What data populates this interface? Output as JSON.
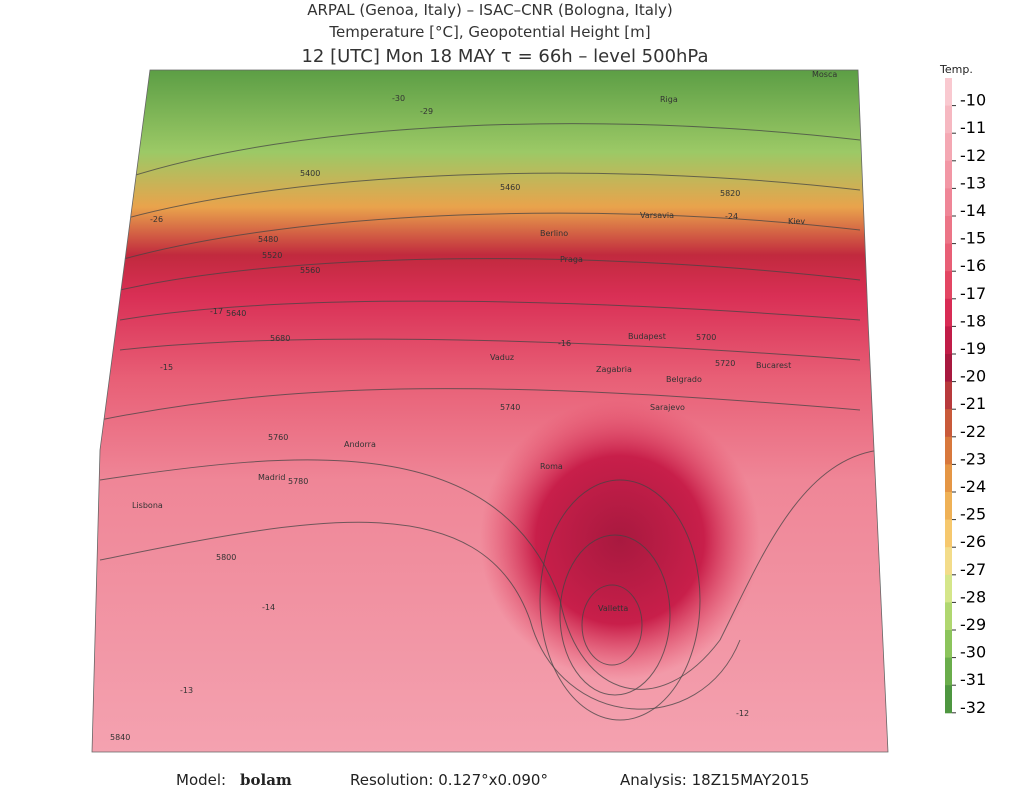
{
  "header": {
    "line1": "ARPAL (Genoa, Italy)  –  ISAC–CNR (Bologna, Italy)",
    "line2": "Temperature [°C], Geopotential Height [m]",
    "line3": "12 [UTC] Mon 18 MAY  τ = 66h  –  level 500hPa"
  },
  "colorbar": {
    "title": "Temp.",
    "levels": [
      -10,
      -11,
      -12,
      -13,
      -14,
      -15,
      -16,
      -17,
      -18,
      -19,
      -20,
      -21,
      -22,
      -23,
      -24,
      -25,
      -26,
      -27,
      -28,
      -29,
      -30,
      -31,
      -32
    ],
    "colors": [
      "#f9c9d0",
      "#f6b8c1",
      "#f4a8b3",
      "#f297a5",
      "#ef8697",
      "#ec7587",
      "#e85f76",
      "#e34663",
      "#d82c55",
      "#c11d48",
      "#a8193f",
      "#b83a3c",
      "#c95a3a",
      "#d8783c",
      "#e59645",
      "#efb156",
      "#f6c86e",
      "#f3dc8a",
      "#d5e68a",
      "#b0d770",
      "#8cc45c",
      "#6aad4b",
      "#4e9640"
    ]
  },
  "map": {
    "labels": [
      "Madrid",
      "Lisbona",
      "Andorra",
      "Roma",
      "Vaduz",
      "Zagabria",
      "Belgrado",
      "Sarajevo",
      "Budapest",
      "Bucarest",
      "Valletta",
      "Berlino",
      "Varsavia",
      "Praga",
      "Kiev",
      "Riga",
      "Mosca",
      "5400",
      "5460",
      "5480",
      "5520",
      "5560",
      "5640",
      "5680",
      "5700",
      "5720",
      "5740",
      "5760",
      "5780",
      "5800",
      "5820",
      "5840",
      "-13",
      "-14",
      "-15",
      "-16",
      "-17",
      "-24",
      "-26",
      "-29",
      "-30",
      "-12"
    ]
  },
  "footer": {
    "model_label": "Model:",
    "model": "bolam",
    "resolution": "Resolution: 0.127°x0.090°",
    "analysis": "Analysis: 18Z15MAY2015"
  }
}
